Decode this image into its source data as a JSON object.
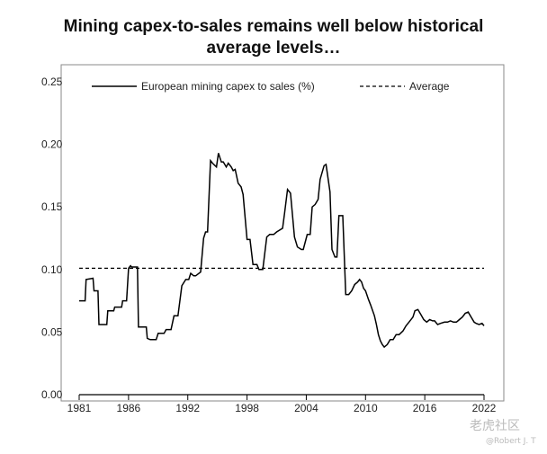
{
  "title_line1": "Mining capex-to-sales remains well below historical",
  "title_line2": "average levels…",
  "watermark": "老虎社区",
  "watermark_user": "@Robert J. T",
  "chart_data": {
    "type": "line",
    "title": "Mining capex-to-sales remains well below historical average levels…",
    "xlabel": "",
    "ylabel": "",
    "xlim": [
      1981,
      2022
    ],
    "ylim": [
      0,
      0.25
    ],
    "x_ticks": [
      1981,
      1986,
      1992,
      1998,
      2004,
      2010,
      2016,
      2022
    ],
    "y_ticks": [
      "0.00",
      "0.05",
      "0.10",
      "0.15",
      "0.20",
      "0.25"
    ],
    "legend_position": "top",
    "series": [
      {
        "name": "European mining capex to sales (%)",
        "style": "solid",
        "x": [
          1981.0,
          1981.6,
          1981.7,
          1982.4,
          1982.5,
          1982.9,
          1983.0,
          1983.8,
          1983.9,
          1984.5,
          1984.6,
          1985.3,
          1985.4,
          1985.8,
          1986.0,
          1986.2,
          1986.3,
          1986.9,
          1987.0,
          1987.8,
          1987.9,
          1988.2,
          1988.8,
          1989.0,
          1989.6,
          1989.8,
          1990.3,
          1990.6,
          1991.0,
          1991.4,
          1991.8,
          1992.1,
          1992.3,
          1992.6,
          1992.8,
          1993.3,
          1993.6,
          1993.8,
          1994.0,
          1994.3,
          1994.5,
          1994.9,
          1995.1,
          1995.4,
          1995.6,
          1995.9,
          1996.1,
          1996.4,
          1996.6,
          1996.8,
          1997.1,
          1997.4,
          1997.6,
          1998.0,
          1998.3,
          1998.6,
          1999.0,
          1999.2,
          1999.6,
          2000.0,
          2000.3,
          2000.7,
          2001.0,
          2001.6,
          2001.8,
          2002.1,
          2002.4,
          2002.8,
          2003.1,
          2003.5,
          2003.7,
          2004.0,
          2004.1,
          2004.4,
          2004.6,
          2004.9,
          2005.2,
          2005.4,
          2005.8,
          2006.0,
          2006.4,
          2006.6,
          2006.9,
          2007.1,
          2007.3,
          2007.7,
          2008.0,
          2008.3,
          2008.6,
          2008.9,
          2009.2,
          2009.4,
          2009.6,
          2009.8,
          2010.0,
          2010.3,
          2010.5,
          2010.9,
          2011.1,
          2011.3,
          2011.5,
          2011.7,
          2011.9,
          2012.2,
          2012.5,
          2012.8,
          2013.1,
          2013.4,
          2013.8,
          2014.1,
          2014.4,
          2014.8,
          2015.0,
          2015.3,
          2015.6,
          2015.9,
          2016.2,
          2016.5,
          2016.8,
          2017.0,
          2017.3,
          2017.6,
          2018.0,
          2018.3,
          2018.6,
          2018.9,
          2019.2,
          2019.5,
          2019.8,
          2020.1,
          2020.4,
          2020.7,
          2021.0,
          2021.2,
          2021.5,
          2021.8,
          2022.0
        ],
        "values": [
          0.075,
          0.075,
          0.092,
          0.093,
          0.083,
          0.083,
          0.056,
          0.056,
          0.067,
          0.067,
          0.07,
          0.07,
          0.075,
          0.075,
          0.101,
          0.103,
          0.102,
          0.102,
          0.054,
          0.054,
          0.045,
          0.044,
          0.044,
          0.049,
          0.049,
          0.052,
          0.052,
          0.063,
          0.063,
          0.087,
          0.092,
          0.092,
          0.097,
          0.095,
          0.095,
          0.098,
          0.125,
          0.13,
          0.13,
          0.187,
          0.185,
          0.182,
          0.193,
          0.186,
          0.186,
          0.182,
          0.185,
          0.182,
          0.179,
          0.18,
          0.169,
          0.166,
          0.16,
          0.124,
          0.124,
          0.104,
          0.104,
          0.1,
          0.1,
          0.126,
          0.128,
          0.128,
          0.13,
          0.133,
          0.145,
          0.164,
          0.161,
          0.126,
          0.118,
          0.116,
          0.116,
          0.125,
          0.128,
          0.128,
          0.15,
          0.152,
          0.156,
          0.172,
          0.183,
          0.184,
          0.162,
          0.116,
          0.11,
          0.11,
          0.143,
          0.143,
          0.08,
          0.08,
          0.083,
          0.088,
          0.09,
          0.092,
          0.09,
          0.085,
          0.083,
          0.076,
          0.072,
          0.063,
          0.056,
          0.048,
          0.043,
          0.04,
          0.038,
          0.04,
          0.044,
          0.044,
          0.048,
          0.048,
          0.051,
          0.055,
          0.058,
          0.062,
          0.067,
          0.068,
          0.064,
          0.06,
          0.058,
          0.06,
          0.059,
          0.059,
          0.056,
          0.057,
          0.058,
          0.058,
          0.059,
          0.058,
          0.058,
          0.06,
          0.062,
          0.065,
          0.066,
          0.062,
          0.058,
          0.057,
          0.056,
          0.057,
          0.055
        ]
      },
      {
        "name": "Average",
        "style": "dashed",
        "x": [
          1981,
          2022
        ],
        "values": [
          0.101,
          0.101
        ]
      }
    ]
  }
}
